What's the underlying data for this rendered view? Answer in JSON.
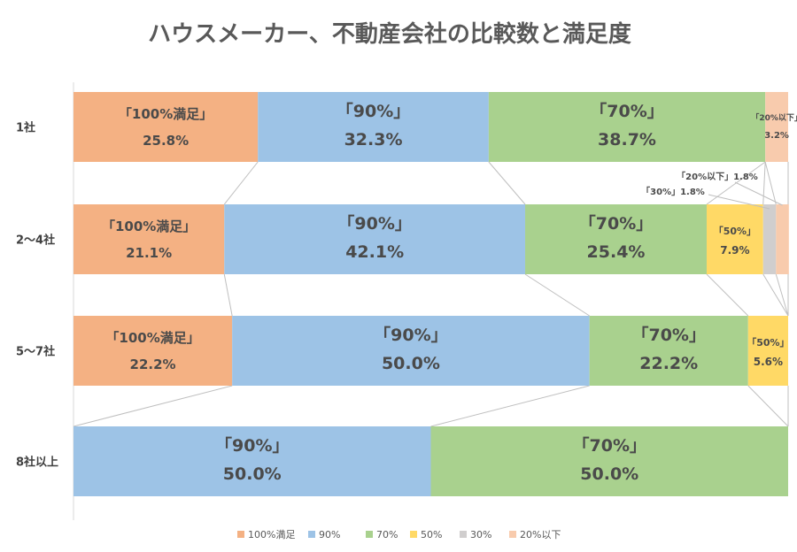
{
  "chart_data": {
    "type": "bar",
    "title": "ハウスメーカー、不動産会社の比較数と満足度",
    "orientation": "horizontal-100%-stacked",
    "categories": [
      "1社",
      "2～4社",
      "5～7社",
      "8社以上"
    ],
    "series": [
      {
        "name": "100%満足",
        "label": "「100%満足」",
        "color": "#f4b183",
        "values": [
          25.8,
          21.1,
          22.2,
          0
        ]
      },
      {
        "name": "90%",
        "label": "「90%」",
        "color": "#9dc3e6",
        "values": [
          32.3,
          42.1,
          50.0,
          50.0
        ]
      },
      {
        "name": "70%",
        "label": "「70%」",
        "color": "#a9d18e",
        "values": [
          38.7,
          25.4,
          22.2,
          50.0
        ]
      },
      {
        "name": "50%",
        "label": "「50%」",
        "color": "#ffd966",
        "values": [
          0,
          7.9,
          5.6,
          0
        ]
      },
      {
        "name": "30%",
        "label": "「30%」",
        "color": "#d0cece",
        "values": [
          0,
          1.8,
          0,
          0
        ]
      },
      {
        "name": "20%以下",
        "label": "「20%以下」",
        "color": "#f8cbad",
        "values": [
          3.2,
          1.8,
          0,
          0
        ]
      }
    ],
    "value_labels": [
      [
        "25.8%",
        "32.3%",
        "38.7%",
        "",
        "",
        "3.2%"
      ],
      [
        "21.1%",
        "42.1%",
        "25.4%",
        "7.9%",
        "",
        ""
      ],
      [
        "22.2%",
        "50.0%",
        "22.2%",
        "5.6%",
        "",
        ""
      ],
      [
        "",
        "50.0%",
        "50.0%",
        "",
        "",
        ""
      ]
    ],
    "callouts": [
      "「20%以下」1.8%",
      "「30%」1.8%"
    ],
    "legend_position": "bottom",
    "xlim": [
      0,
      100
    ],
    "grid": false
  }
}
